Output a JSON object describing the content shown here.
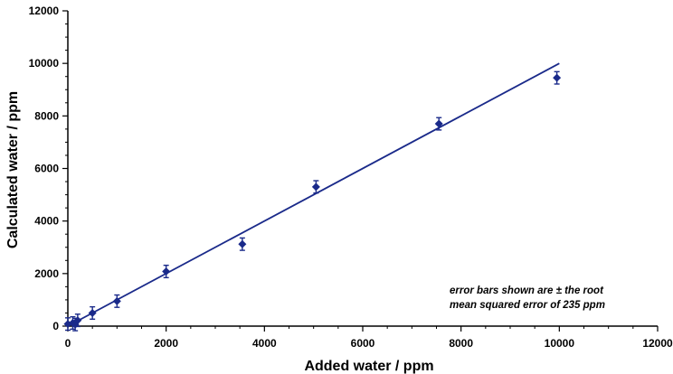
{
  "chart_data": {
    "type": "scatter",
    "xlabel": "Added water / ppm",
    "ylabel": "Calculated water / ppm",
    "xlim": [
      0,
      12000
    ],
    "ylim": [
      0,
      12000
    ],
    "x_ticks": [
      0,
      2000,
      4000,
      6000,
      8000,
      10000,
      12000
    ],
    "y_ticks": [
      0,
      2000,
      4000,
      6000,
      8000,
      10000,
      12000
    ],
    "grid": false,
    "annotation": [
      "error bars shown are ± the root",
      "mean squared error of 235 ppm"
    ],
    "marker_color": "#1a2a8a",
    "line_color": "#1a2a8a",
    "error_bar": 235,
    "points": [
      {
        "x": 0,
        "y": 80
      },
      {
        "x": 100,
        "y": 120
      },
      {
        "x": 150,
        "y": 60
      },
      {
        "x": 200,
        "y": 220
      },
      {
        "x": 500,
        "y": 500
      },
      {
        "x": 1000,
        "y": 950
      },
      {
        "x": 2000,
        "y": 2080
      },
      {
        "x": 3550,
        "y": 3120
      },
      {
        "x": 5050,
        "y": 5300
      },
      {
        "x": 7550,
        "y": 7700
      },
      {
        "x": 9950,
        "y": 9450
      }
    ],
    "fit_line": {
      "x": [
        0,
        10000
      ],
      "y": [
        0,
        10000
      ]
    }
  }
}
